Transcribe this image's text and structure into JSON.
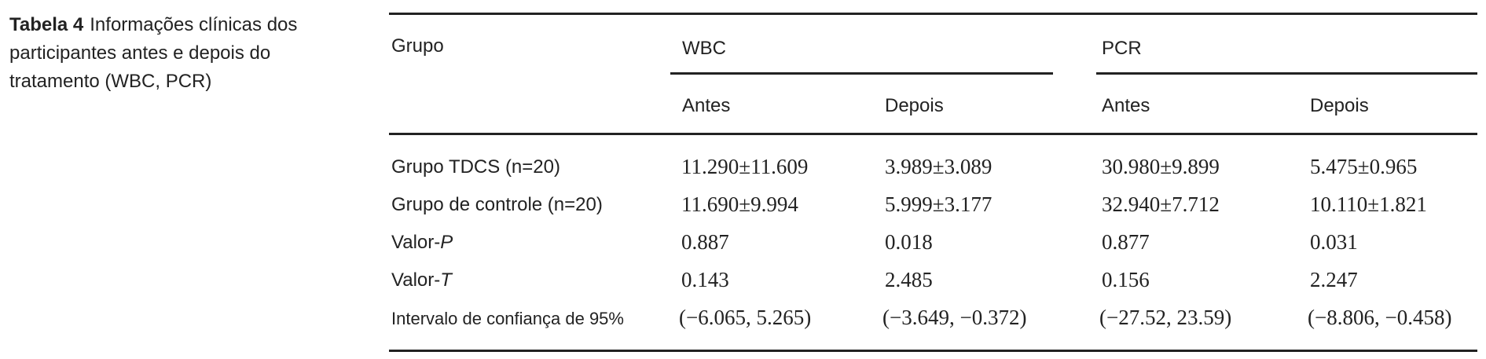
{
  "caption": {
    "label": "Tabela 4",
    "text": "Informações clínicas dos participantes antes e depois do tratamento (WBC, PCR)"
  },
  "table": {
    "header": {
      "group": "Grupo",
      "wbc": "WBC",
      "pcr": "PCR",
      "wbc_before": "Antes",
      "wbc_after": "Depois",
      "pcr_before": "Antes",
      "pcr_after": "Depois"
    },
    "rows": [
      {
        "label": "Grupo TDCS (n=20)",
        "values": [
          "11.290±11.609",
          "3.989±3.089",
          "30.980±9.899",
          "5.475±0.965"
        ]
      },
      {
        "label": "Grupo de controle (n=20)",
        "values": [
          "11.690±9.994",
          "5.999±3.177",
          "32.940±7.712",
          "10.110±1.821"
        ]
      },
      {
        "label_prefix": "Valor-",
        "label_italic": "P",
        "values": [
          "0.887",
          "0.018",
          "0.877",
          "0.031"
        ]
      },
      {
        "label_prefix": "Valor-",
        "label_italic": "T",
        "values": [
          "0.143",
          "2.485",
          "0.156",
          "2.247"
        ]
      },
      {
        "label": "Intervalo de confiança de 95%",
        "values": [
          "(−6.065, 5.265)",
          "(−3.649, −0.372)",
          "(−27.52, 23.59)",
          "(−8.806, −0.458)"
        ]
      }
    ]
  }
}
